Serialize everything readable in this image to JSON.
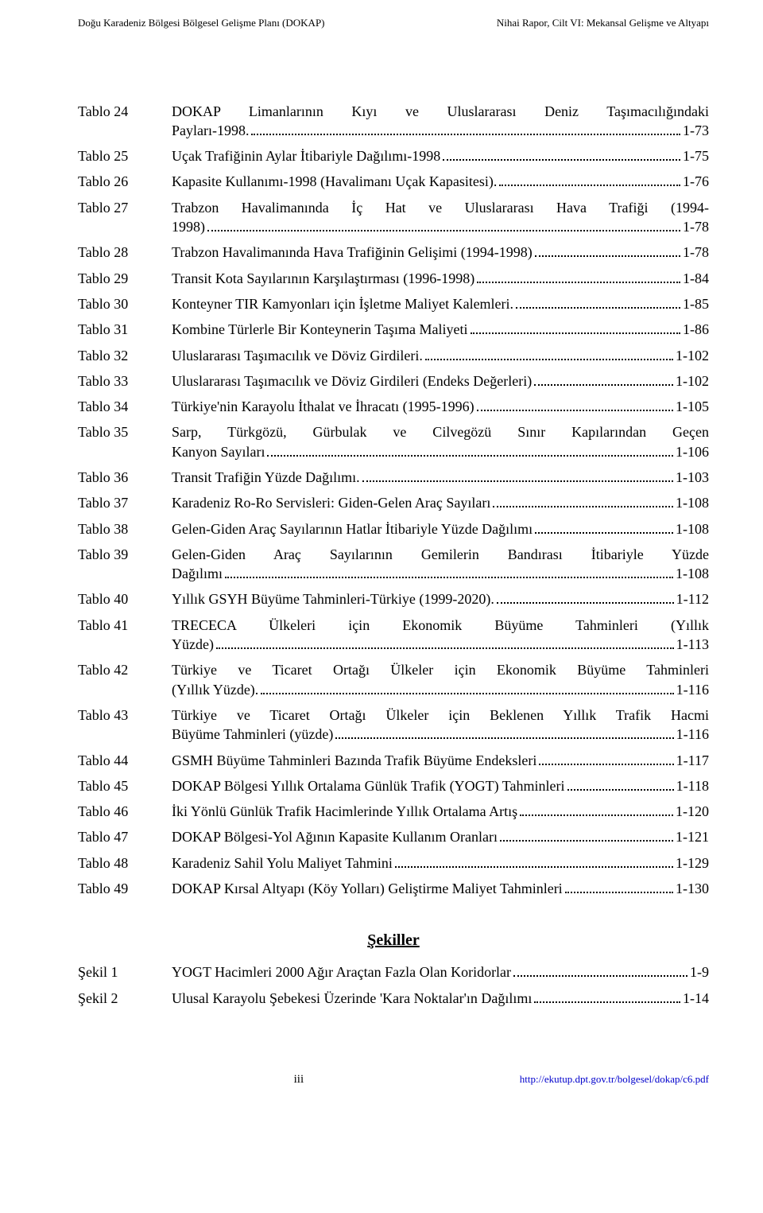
{
  "header": {
    "left": "Doğu Karadeniz Bölgesi Bölgesel Gelişme Planı (DOKAP)",
    "right": "Nihai Rapor, Cilt VI: Mekansal Gelişme ve Altyapı"
  },
  "toc": [
    {
      "label": "Tablo 24",
      "lines": [
        "DOKAP Limanlarının Kıyı ve Uluslararası Deniz Taşımacılığındaki",
        "Payları-1998."
      ],
      "page": "1-73"
    },
    {
      "label": "Tablo 25",
      "lines": [
        "Uçak Trafiğinin Aylar İtibariyle Dağılımı-1998"
      ],
      "page": "1-75"
    },
    {
      "label": "Tablo 26",
      "lines": [
        "Kapasite Kullanımı-1998 (Havalimanı Uçak Kapasitesi)."
      ],
      "page": "1-76"
    },
    {
      "label": "Tablo 27",
      "lines": [
        "Trabzon Havalimanında İç Hat ve Uluslararası Hava Trafiği (1994-",
        "1998)"
      ],
      "page": "1-78"
    },
    {
      "label": "Tablo 28",
      "lines": [
        "Trabzon Havalimanında Hava Trafiğinin Gelişimi (1994-1998)"
      ],
      "page": "1-78"
    },
    {
      "label": "Tablo 29",
      "lines": [
        "Transit Kota Sayılarının Karşılaştırması (1996-1998)"
      ],
      "page": "1-84"
    },
    {
      "label": "Tablo 30",
      "lines": [
        "Konteyner TIR Kamyonları için İşletme Maliyet Kalemleri."
      ],
      "page": "1-85"
    },
    {
      "label": "Tablo 31",
      "lines": [
        "Kombine Türlerle Bir Konteynerin Taşıma Maliyeti"
      ],
      "page": "1-86"
    },
    {
      "label": "Tablo 32",
      "lines": [
        "Uluslararası Taşımacılık ve Döviz Girdileri."
      ],
      "page": "1-102"
    },
    {
      "label": "Tablo 33",
      "lines": [
        "Uluslararası Taşımacılık ve Döviz Girdileri (Endeks Değerleri)"
      ],
      "page": "1-102"
    },
    {
      "label": "Tablo 34",
      "lines": [
        "Türkiye'nin Karayolu İthalat ve İhracatı (1995-1996)"
      ],
      "page": "1-105"
    },
    {
      "label": "Tablo 35",
      "lines": [
        "Sarp, Türkgözü, Gürbulak ve Cilvegözü Sınır Kapılarından Geçen",
        "Kanyon Sayıları"
      ],
      "page": "1-106"
    },
    {
      "label": "Tablo 36",
      "lines": [
        "Transit Trafiğin Yüzde Dağılımı."
      ],
      "page": "1-103"
    },
    {
      "label": "Tablo 37",
      "lines": [
        "Karadeniz Ro-Ro Servisleri: Giden-Gelen Araç Sayıları"
      ],
      "page": "1-108"
    },
    {
      "label": "Tablo 38",
      "lines": [
        "Gelen-Giden Araç Sayılarının Hatlar İtibariyle Yüzde Dağılımı"
      ],
      "page": "1-108"
    },
    {
      "label": "Tablo 39",
      "lines": [
        "Gelen-Giden Araç Sayılarının Gemilerin Bandırası İtibariyle Yüzde",
        "Dağılımı"
      ],
      "page": "1-108"
    },
    {
      "label": "Tablo 40",
      "lines": [
        "Yıllık GSYH Büyüme Tahminleri-Türkiye (1999-2020)."
      ],
      "page": "1-112"
    },
    {
      "label": "Tablo 41",
      "lines": [
        "TRECECA Ülkeleri için Ekonomik Büyüme Tahminleri (Yıllık",
        "Yüzde)"
      ],
      "page": "1-113"
    },
    {
      "label": "Tablo 42",
      "lines": [
        "Türkiye ve Ticaret Ortağı Ülkeler için Ekonomik Büyüme Tahminleri",
        "(Yıllık Yüzde)."
      ],
      "page": "1-116"
    },
    {
      "label": "Tablo 43",
      "lines": [
        "Türkiye ve Ticaret Ortağı Ülkeler için Beklenen Yıllık Trafik Hacmi",
        "Büyüme Tahminleri (yüzde)"
      ],
      "page": "1-116"
    },
    {
      "label": "Tablo 44",
      "lines": [
        "GSMH Büyüme Tahminleri Bazında Trafik Büyüme Endeksleri"
      ],
      "page": "1-117"
    },
    {
      "label": "Tablo 45",
      "lines": [
        "DOKAP Bölgesi Yıllık Ortalama Günlük Trafik (YOGT) Tahminleri"
      ],
      "page": "1-118"
    },
    {
      "label": "Tablo 46",
      "lines": [
        "İki Yönlü Günlük Trafik Hacimlerinde Yıllık Ortalama Artış"
      ],
      "page": "1-120"
    },
    {
      "label": "Tablo 47",
      "lines": [
        "DOKAP Bölgesi-Yol Ağının Kapasite Kullanım Oranları"
      ],
      "page": "1-121"
    },
    {
      "label": "Tablo 48",
      "lines": [
        "Karadeniz Sahil Yolu Maliyet Tahmini"
      ],
      "page": "1-129"
    },
    {
      "label": "Tablo 49",
      "lines": [
        "DOKAP Kırsal Altyapı (Köy Yolları) Geliştirme Maliyet Tahminleri"
      ],
      "page": "1-130"
    }
  ],
  "figuresHeading": "Şekiller",
  "figures": [
    {
      "label": "Şekil 1",
      "lines": [
        "YOGT Hacimleri 2000 Ağır Araçtan Fazla Olan Koridorlar"
      ],
      "page": "1-9"
    },
    {
      "label": "Şekil 2",
      "lines": [
        "Ulusal Karayolu Şebekesi Üzerinde 'Kara Noktalar'ın Dağılımı"
      ],
      "page": "1-14"
    }
  ],
  "footer": {
    "left": "",
    "center": "iii",
    "right": "http://ekutup.dpt.gov.tr/bolgesel/dokap/c6.pdf"
  }
}
